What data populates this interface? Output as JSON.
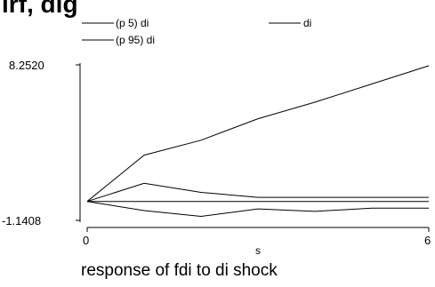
{
  "title_fragment": "irf, dlg",
  "legend": {
    "items": [
      {
        "label": "(p 5) di"
      },
      {
        "label": "di"
      },
      {
        "label": "(p 95) di"
      }
    ]
  },
  "axes": {
    "ytick_top": "8.2520",
    "ytick_bottom": "-1.1408",
    "xtick_left": "0",
    "xtick_right": "6",
    "xlabel": "s"
  },
  "caption": "response of fdi to di shock",
  "colors": {
    "line": "#000000",
    "background": "#ffffff"
  },
  "chart_data": {
    "type": "line",
    "x": [
      0,
      1,
      2,
      3,
      4,
      5,
      6
    ],
    "xlim": [
      0,
      6
    ],
    "ylim": [
      -1.1408,
      8.252
    ],
    "xlabel": "s",
    "title": "response of fdi to di shock",
    "grid": false,
    "legend_position": "top",
    "series": [
      {
        "name": "(p 95) di",
        "values": [
          0.0,
          2.8,
          3.7,
          5.0,
          6.0,
          7.1,
          8.2
        ]
      },
      {
        "name": "di",
        "values": [
          0.0,
          1.1,
          0.55,
          0.25,
          0.25,
          0.25,
          0.25
        ]
      },
      {
        "name": "(p 5) di",
        "values": [
          0.0,
          -0.55,
          -0.9,
          -0.45,
          -0.6,
          -0.4,
          -0.4
        ]
      },
      {
        "name": "",
        "values": [
          0.0,
          0.0,
          0.0,
          0.0,
          0.0,
          0.0,
          0.0
        ]
      }
    ]
  }
}
